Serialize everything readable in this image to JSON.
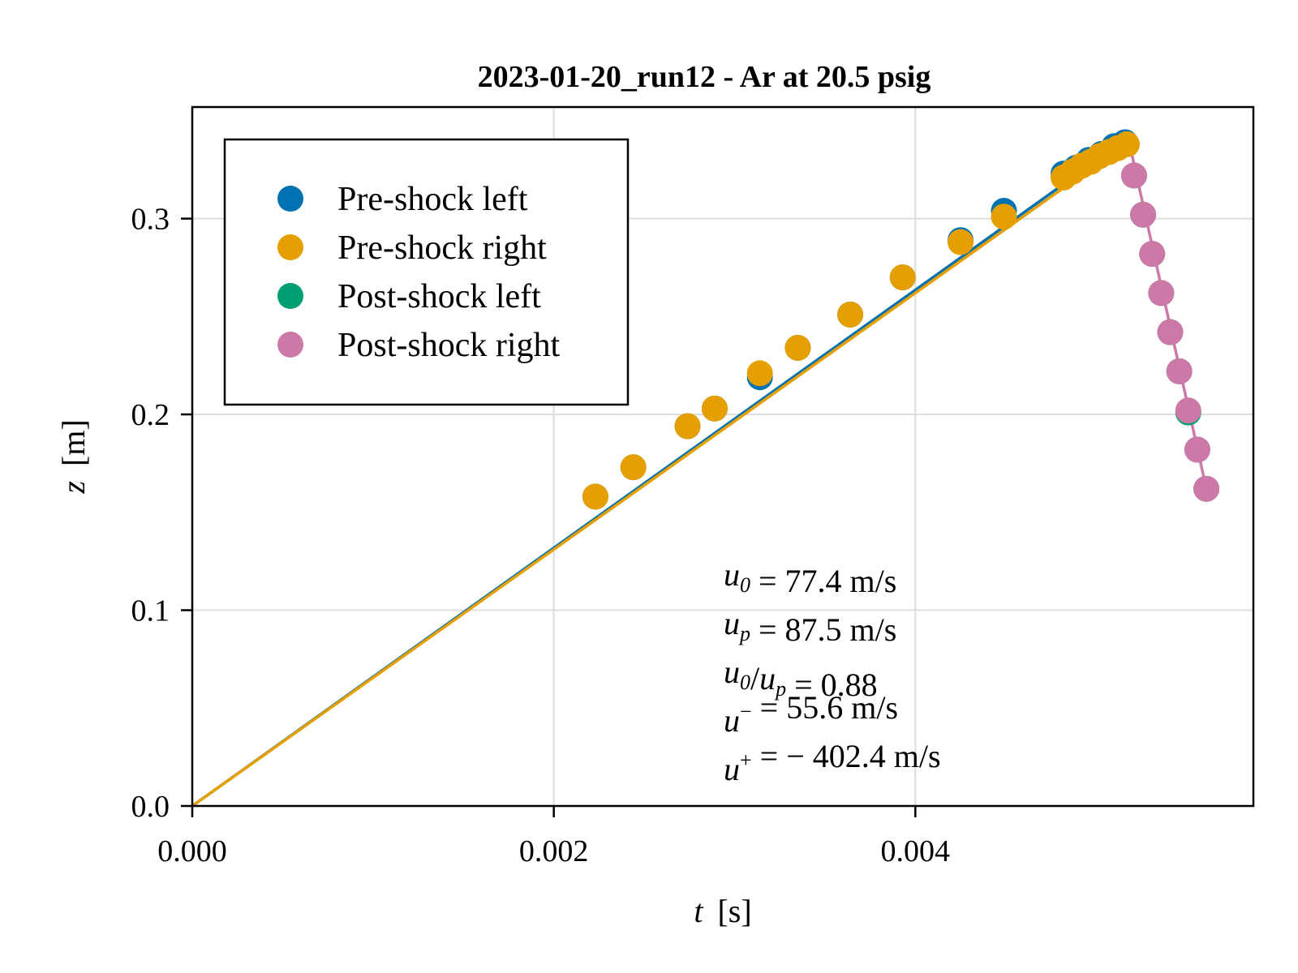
{
  "chart_data": {
    "type": "scatter",
    "title": "2023-01-20_run12 -  Ar at 20.5 psig",
    "xlabel": {
      "var": "t",
      "unit": "[s]"
    },
    "ylabel": {
      "var": "z",
      "unit": "[m]"
    },
    "xlim": [
      0.0,
      0.00587
    ],
    "ylim": [
      0.0,
      0.357
    ],
    "xticks": [
      "0.000",
      "0.002",
      "0.004"
    ],
    "xtick_values": [
      0.0,
      0.002,
      0.004
    ],
    "yticks": [
      "0.0",
      "0.1",
      "0.2",
      "0.3"
    ],
    "ytick_values": [
      0.0,
      0.1,
      0.2,
      0.3
    ],
    "grid": true,
    "legend_placement": "top-left",
    "colors": {
      "pre_left": "#0072B2",
      "pre_right": "#E69F00",
      "post_left": "#009E73",
      "post_right": "#CC79A7"
    },
    "series": [
      {
        "name": "Pre-shock left",
        "color": "#0072B2",
        "x": [
          0.00223,
          0.00244,
          0.00274,
          0.00289,
          0.00314,
          0.00335,
          0.00364,
          0.00393,
          0.00425,
          0.00449,
          0.00482,
          0.00489,
          0.00496,
          0.00503,
          0.0051,
          0.00516
        ],
        "y": [
          0.158,
          0.173,
          0.194,
          0.203,
          0.219,
          0.234,
          0.251,
          0.27,
          0.289,
          0.304,
          0.323,
          0.326,
          0.33,
          0.333,
          0.337,
          0.339
        ]
      },
      {
        "name": "Pre-shock right",
        "color": "#E69F00",
        "x": [
          0.00223,
          0.00244,
          0.00274,
          0.00289,
          0.00314,
          0.00335,
          0.00364,
          0.00393,
          0.00425,
          0.00449,
          0.00482,
          0.00487,
          0.00492,
          0.00497,
          0.00502,
          0.00507,
          0.00512,
          0.00517
        ],
        "y": [
          0.158,
          0.173,
          0.194,
          0.203,
          0.221,
          0.234,
          0.251,
          0.27,
          0.288,
          0.301,
          0.321,
          0.324,
          0.327,
          0.329,
          0.332,
          0.334,
          0.336,
          0.338
        ]
      },
      {
        "name": "Post-shock left",
        "color": "#009E73",
        "x": [
          0.00521,
          0.00526,
          0.00531,
          0.00536,
          0.00541,
          0.00546,
          0.00551,
          0.00556,
          0.00561
        ],
        "y": [
          0.322,
          0.302,
          0.282,
          0.262,
          0.242,
          0.222,
          0.201,
          0.182,
          0.162
        ]
      },
      {
        "name": "Post-shock right",
        "color": "#CC79A7",
        "x": [
          0.00521,
          0.00526,
          0.00531,
          0.00536,
          0.00541,
          0.00546,
          0.00551,
          0.00556,
          0.00561
        ],
        "y": [
          0.322,
          0.302,
          0.282,
          0.262,
          0.242,
          0.222,
          0.202,
          0.182,
          0.162
        ]
      }
    ],
    "fit_lines": [
      {
        "color": "#0072B2",
        "x": [
          0.0,
          0.00516
        ],
        "y": [
          0.0,
          0.34
        ]
      },
      {
        "color": "#E69F00",
        "x": [
          0.0,
          0.00516
        ],
        "y": [
          0.0,
          0.338
        ]
      },
      {
        "color": "#CC79A7",
        "x": [
          0.00519,
          0.00561
        ],
        "y": [
          0.336,
          0.162
        ]
      }
    ],
    "annotations": [
      {
        "var": "u",
        "sub": "0",
        "sup": "",
        "text": " = 77.4 m/s"
      },
      {
        "var": "u",
        "sub": "p",
        "sup": "",
        "text": " = 87.5 m/s"
      },
      {
        "var": "u",
        "sub": "0",
        "sup": "",
        "text": "/",
        "var2": "u",
        "sub2": "p",
        "text2": " = 0.88"
      },
      {
        "var": "u",
        "sub": "",
        "sup": "−",
        "text": " = 55.6 m/s"
      },
      {
        "var": "u",
        "sub": "",
        "sup": "+",
        "text": " = − 402.4 m/s"
      }
    ]
  }
}
